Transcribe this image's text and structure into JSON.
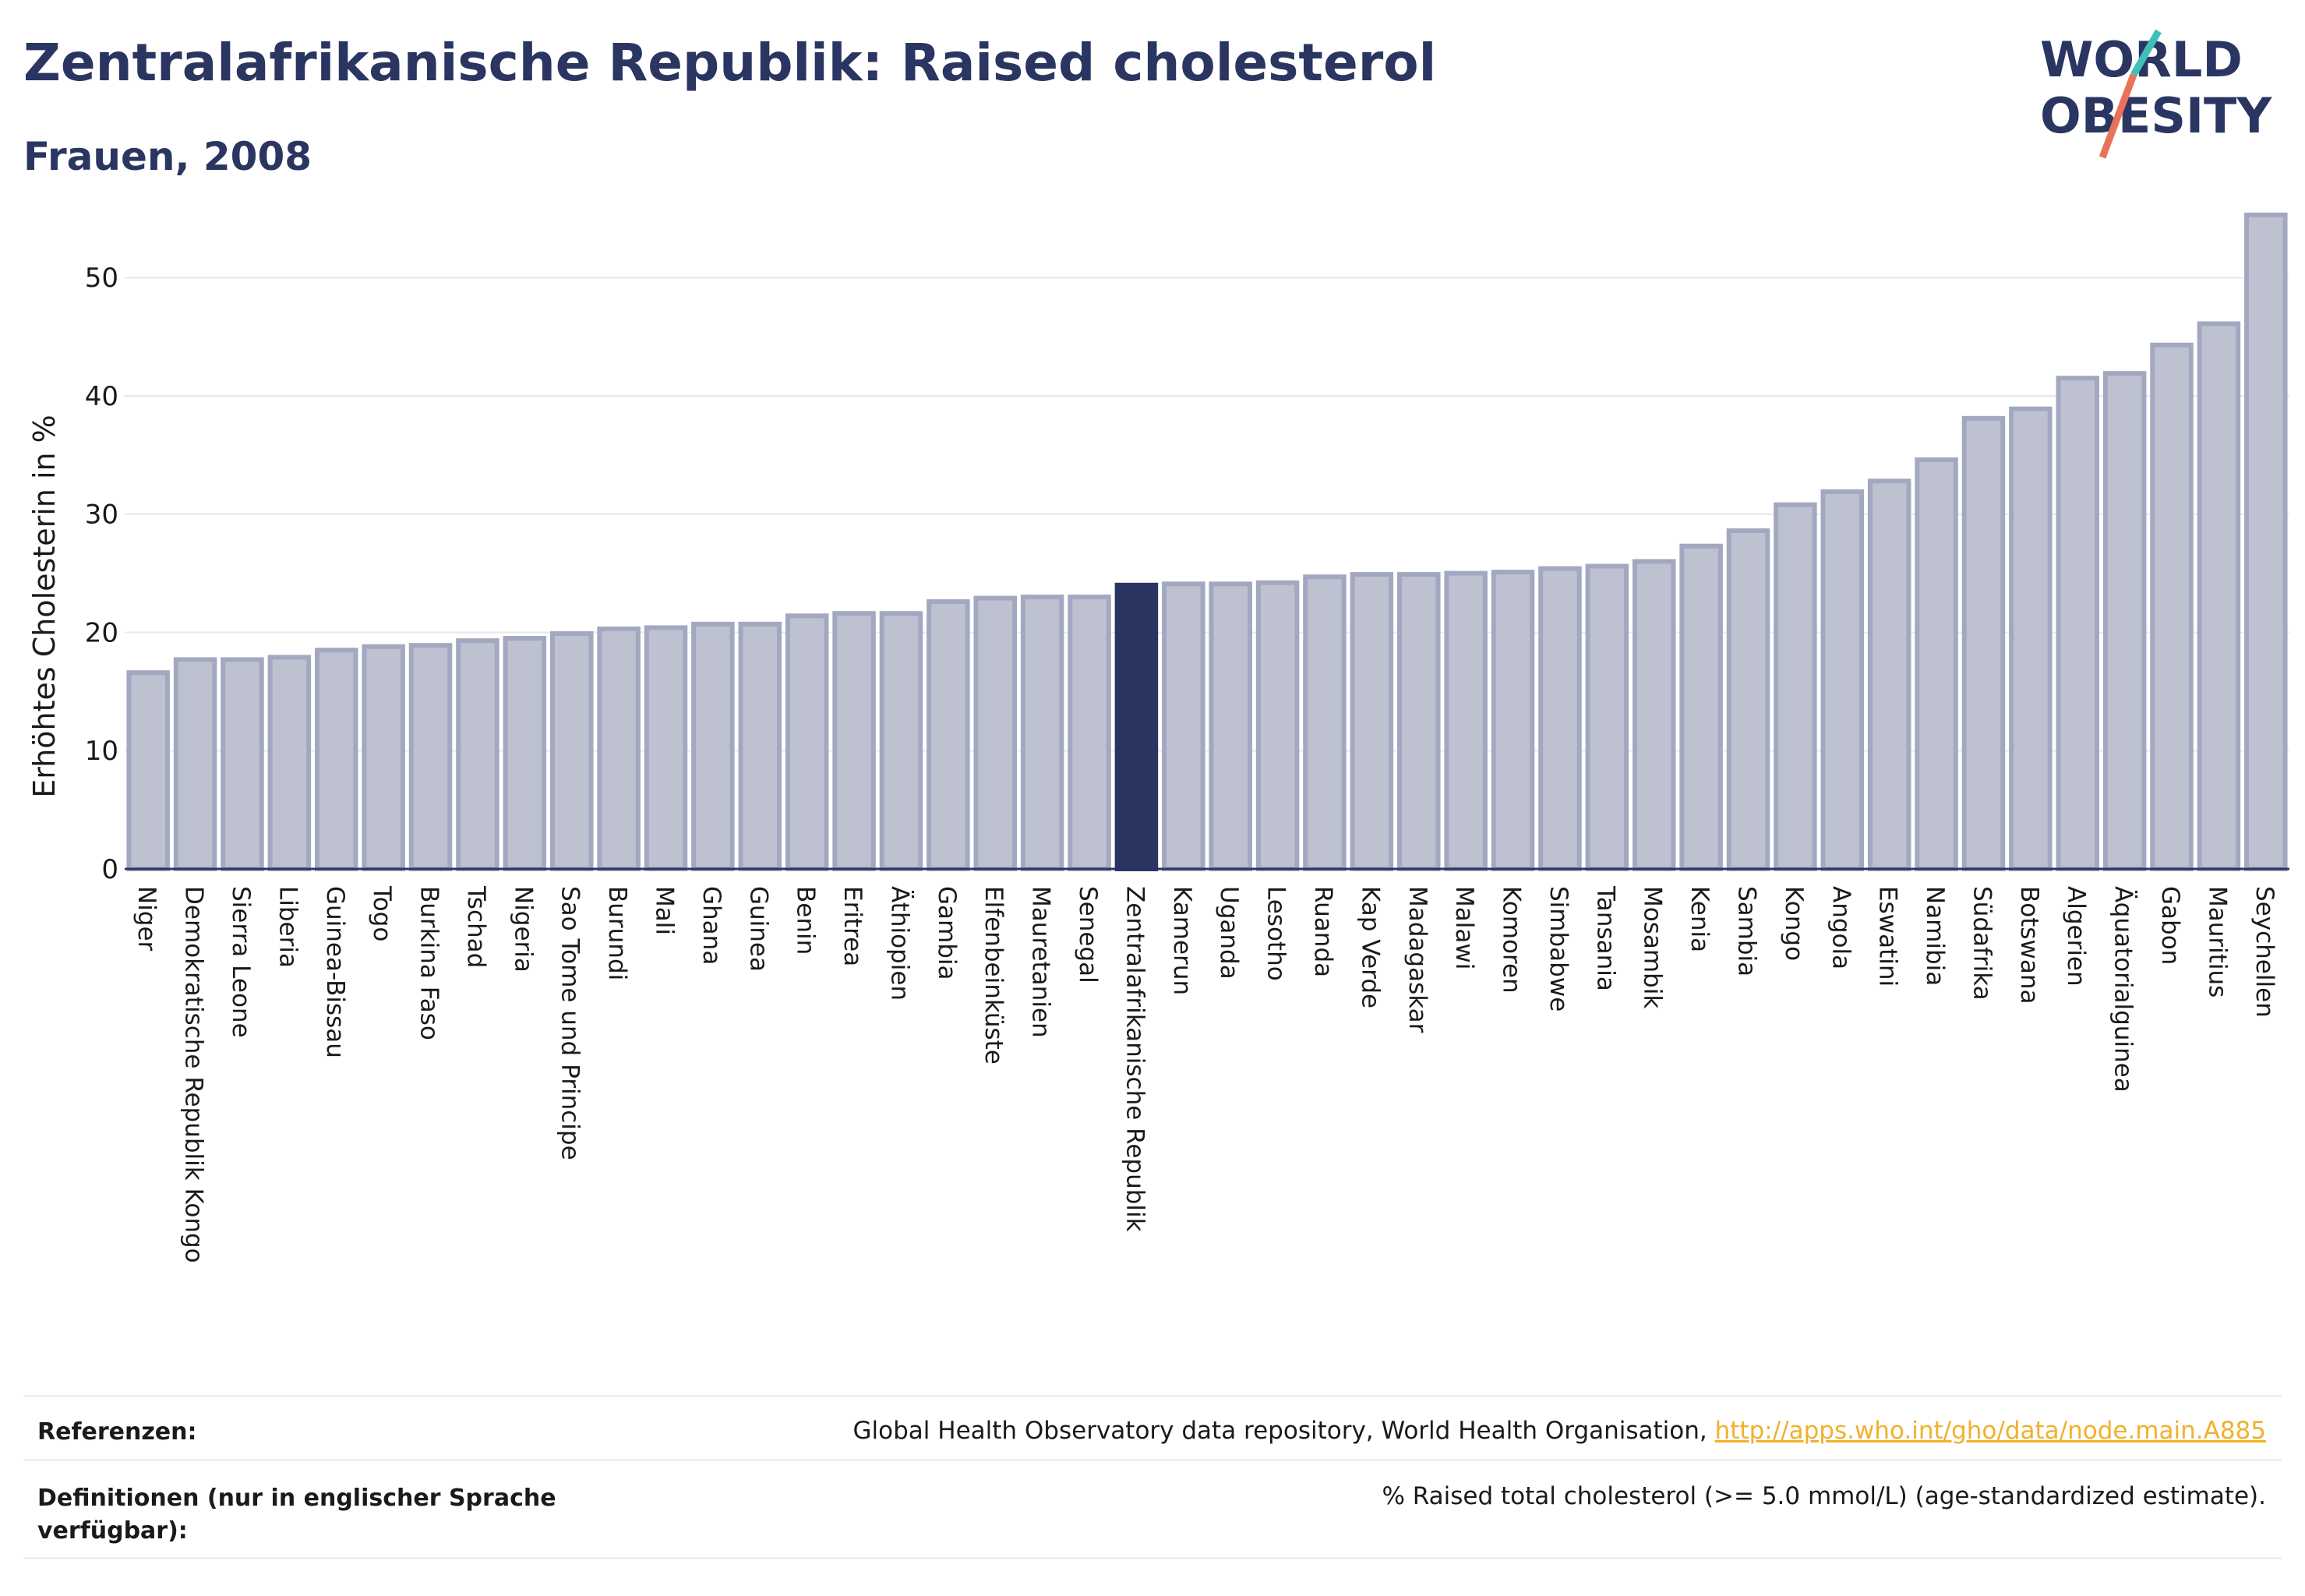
{
  "header": {
    "title": "Zentralafrikanische Republik: Raised cholesterol",
    "subtitle": "Frauen, 2008"
  },
  "logo": {
    "line1": "WORLD",
    "line2": "OBESITY",
    "colors": {
      "text": "#2a3561",
      "slash_teal": "#3fbfb8",
      "slash_coral": "#e8735a"
    }
  },
  "colors": {
    "bar_fill": "#bdc1d0",
    "bar_stroke": "#a3a8c1",
    "highlight": "#2a3561",
    "grid": "#e6e8ee"
  },
  "chart_data": {
    "type": "bar",
    "ylabel": "Erhöhtes Cholesterin in %",
    "ylim": [
      0,
      57
    ],
    "yticks": [
      0,
      10,
      20,
      30,
      40,
      50
    ],
    "grid": true,
    "highlight": "Zentralafrikanische Republik",
    "categories": [
      "Niger",
      "Demokratische Republik Kongo",
      "Sierra Leone",
      "Liberia",
      "Guinea-Bissau",
      "Togo",
      "Burkina Faso",
      "Tschad",
      "Nigeria",
      "Sao Tome und Principe",
      "Burundi",
      "Mali",
      "Ghana",
      "Guinea",
      "Benin",
      "Eritrea",
      "Äthiopien",
      "Gambia",
      "Elfenbeinküste",
      "Mauretanien",
      "Senegal",
      "Zentralafrikanische Republik",
      "Kamerun",
      "Uganda",
      "Lesotho",
      "Ruanda",
      "Kap Verde",
      "Madagaskar",
      "Malawi",
      "Komoren",
      "Simbabwe",
      "Tansania",
      "Mosambik",
      "Kenia",
      "Sambia",
      "Kongo",
      "Angola",
      "Eswatini",
      "Namibia",
      "Südafrika",
      "Botswana",
      "Algerien",
      "Äquatorialguinea",
      "Gabon",
      "Mauritius",
      "Seychellen"
    ],
    "values": [
      16.6,
      17.7,
      17.7,
      17.9,
      18.5,
      18.8,
      18.9,
      19.3,
      19.5,
      19.9,
      20.3,
      20.4,
      20.7,
      20.7,
      21.4,
      21.6,
      21.6,
      22.6,
      22.9,
      23.0,
      23.0,
      24.0,
      24.1,
      24.1,
      24.2,
      24.7,
      24.9,
      24.9,
      25.0,
      25.1,
      25.4,
      25.6,
      26.0,
      27.3,
      28.6,
      30.8,
      31.9,
      32.8,
      34.6,
      38.1,
      38.9,
      41.5,
      41.9,
      44.3,
      46.1,
      55.3
    ]
  },
  "footer": {
    "references_label": "Referenzen:",
    "references_text": "Global Health Observatory data repository, World Health Organisation, ",
    "references_link": "http://apps.who.int/gho/data/node.main.A885",
    "definitions_label_1": "Definitionen (nur in englischer Sprache",
    "definitions_label_2": "verfügbar):",
    "definitions_text": "% Raised total cholesterol (>= 5.0 mmol/L) (age-standardized estimate)."
  }
}
